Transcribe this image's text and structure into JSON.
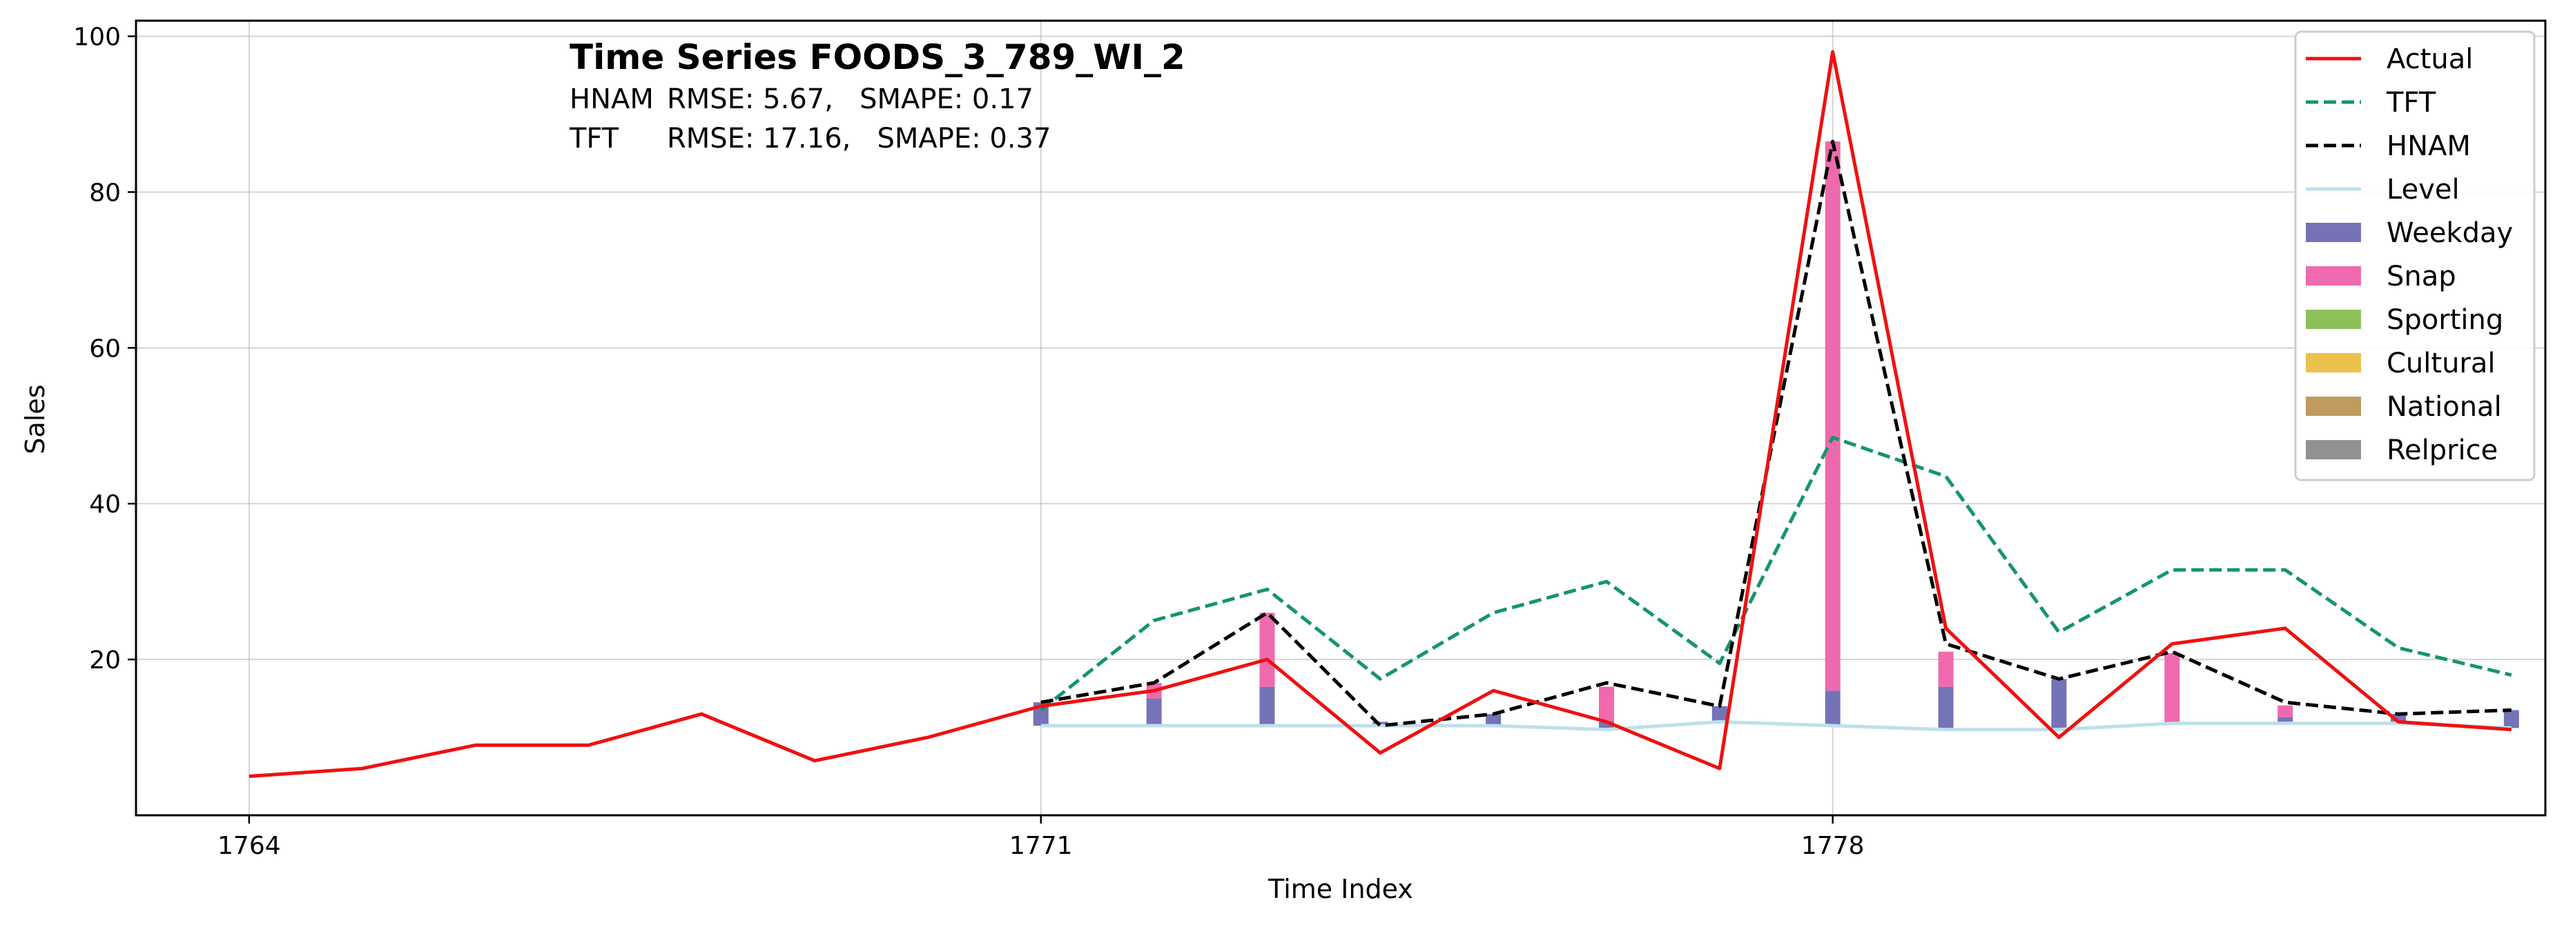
{
  "chart_data": {
    "type": "line",
    "title": "Time Series FOODS_3_789_WI_2",
    "metrics": [
      {
        "model": "HNAM",
        "text": "RMSE: 5.67,   SMAPE: 0.17"
      },
      {
        "model": "TFT",
        "text": "RMSE: 17.16,   SMAPE: 0.37"
      }
    ],
    "xlabel": "Time Index",
    "ylabel": "Sales",
    "xlim": [
      1763,
      1784.3
    ],
    "ylim": [
      0,
      102
    ],
    "xticks": [
      1764,
      1771,
      1778
    ],
    "yticks": [
      20,
      40,
      60,
      80,
      100
    ],
    "grid": true,
    "legend_position": "top-right",
    "series": [
      {
        "name": "Actual",
        "kind": "line",
        "style": "solid",
        "color": "#ee1111",
        "x": [
          1764,
          1765,
          1766,
          1767,
          1768,
          1769,
          1770,
          1771,
          1772,
          1773,
          1774,
          1775,
          1776,
          1777,
          1778,
          1779,
          1780,
          1781,
          1782,
          1783,
          1784
        ],
        "y": [
          5,
          6,
          9,
          9,
          13,
          7,
          10,
          14,
          16,
          20,
          8,
          16,
          12,
          6,
          98,
          24,
          10,
          22,
          24,
          12,
          11
        ]
      },
      {
        "name": "TFT",
        "kind": "line",
        "style": "dashed",
        "color": "#14956b",
        "x": [
          1771,
          1772,
          1773,
          1774,
          1775,
          1776,
          1777,
          1778,
          1779,
          1780,
          1781,
          1782,
          1783,
          1784
        ],
        "y": [
          13.5,
          25,
          29,
          17.5,
          26,
          30,
          19.5,
          48.5,
          43.5,
          23.5,
          31.5,
          31.5,
          21.5,
          18
        ]
      },
      {
        "name": "HNAM",
        "kind": "line",
        "style": "dashed",
        "color": "#000000",
        "x": [
          1771,
          1772,
          1773,
          1774,
          1775,
          1776,
          1777,
          1778,
          1779,
          1780,
          1781,
          1782,
          1783,
          1784
        ],
        "y": [
          14.5,
          17,
          26,
          11.5,
          13,
          17,
          14,
          86.5,
          22,
          17.5,
          21,
          14.5,
          13,
          13.5
        ]
      },
      {
        "name": "Level",
        "kind": "line",
        "style": "solid",
        "color": "#bfdfe9",
        "x": [
          1771,
          1772,
          1773,
          1774,
          1775,
          1776,
          1777,
          1778,
          1779,
          1780,
          1781,
          1782,
          1783,
          1784
        ],
        "y": [
          11.5,
          11.5,
          11.5,
          11.5,
          11.5,
          11,
          12,
          11.5,
          11,
          11,
          11.8,
          11.8,
          11.8,
          11.2
        ]
      }
    ],
    "components": [
      {
        "name": "Weekday",
        "color": "#7473b7",
        "values": [
          3,
          3.5,
          5,
          0.5,
          1.5,
          1,
          2,
          4.5,
          5.5,
          6.5,
          0,
          0.8,
          1.2,
          2.3
        ]
      },
      {
        "name": "Snap",
        "color": "#ef6aad",
        "values": [
          0,
          2,
          9.5,
          0,
          0,
          4.5,
          0,
          70.5,
          4.5,
          0,
          9,
          1.5,
          0,
          0
        ]
      },
      {
        "name": "Sporting",
        "color": "#8fbf5a",
        "values": [
          0,
          0,
          0,
          0,
          0,
          0,
          0,
          0,
          0,
          0,
          0,
          0,
          0,
          0
        ]
      },
      {
        "name": "Cultural",
        "color": "#ecc04d",
        "values": [
          0,
          0,
          0,
          0,
          0,
          0,
          0,
          0,
          0,
          0,
          0,
          0,
          0,
          0
        ]
      },
      {
        "name": "National",
        "color": "#bf9b5d",
        "values": [
          0,
          0,
          0,
          0,
          0,
          0,
          0,
          0,
          0,
          0,
          0,
          0,
          0,
          0
        ]
      },
      {
        "name": "Relprice",
        "color": "#929292",
        "values": [
          0,
          0,
          0,
          0,
          0,
          0,
          0,
          0,
          0,
          0,
          0,
          0,
          0,
          0
        ]
      }
    ],
    "component_x": [
      1771,
      1772,
      1773,
      1774,
      1775,
      1776,
      1777,
      1778,
      1779,
      1780,
      1781,
      1782,
      1783,
      1784
    ],
    "legend": [
      "Actual",
      "TFT",
      "HNAM",
      "Level",
      "Weekday",
      "Snap",
      "Sporting",
      "Cultural",
      "National",
      "Relprice"
    ]
  }
}
